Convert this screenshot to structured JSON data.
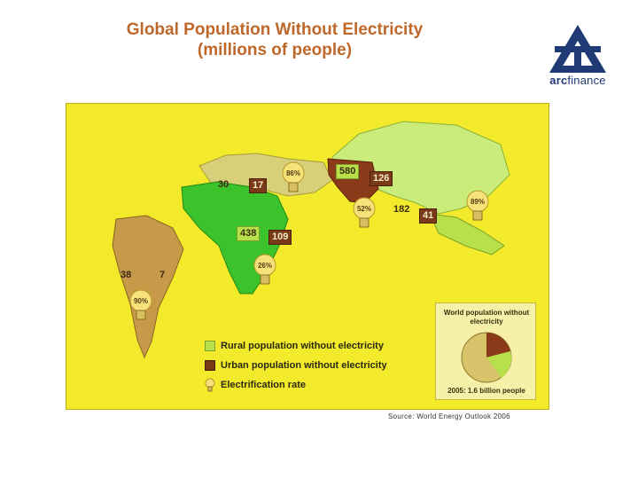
{
  "header": {
    "title_line1": "Global Population Without Electricity",
    "title_line2": "(millions of people)"
  },
  "logo": {
    "name": "arcfinance",
    "text_bold": "arc",
    "text_rest": "finance",
    "colors": {
      "primary": "#1f3a74"
    }
  },
  "colors": {
    "title": "#c0672a",
    "map_background": "#f2ea2a",
    "rural": "#b7e04a",
    "urban": "#7a3a18",
    "bulb": "#f7e27a"
  },
  "regions": {
    "north_africa_middle_east": {
      "rural": "30",
      "urban": "17",
      "electrification": "86%"
    },
    "south_asia": {
      "rural": "580",
      "urban": "126",
      "electrification": "52%"
    },
    "east_asia": {
      "rural": "182",
      "urban": "41",
      "electrification": "89%"
    },
    "sub_saharan_africa": {
      "rural": "438",
      "urban": "109",
      "electrification": "26%"
    },
    "latin_america": {
      "rural": "38",
      "urban": "7",
      "electrification": "90%"
    }
  },
  "legend": {
    "rural": "Rural population without electricity",
    "urban": "Urban population without electricity",
    "rate": "Electrification rate"
  },
  "inset": {
    "title": "World population without electricity",
    "footer": "2005: 1.6 billion people"
  },
  "source": "Source: World Energy Outlook 2006"
}
